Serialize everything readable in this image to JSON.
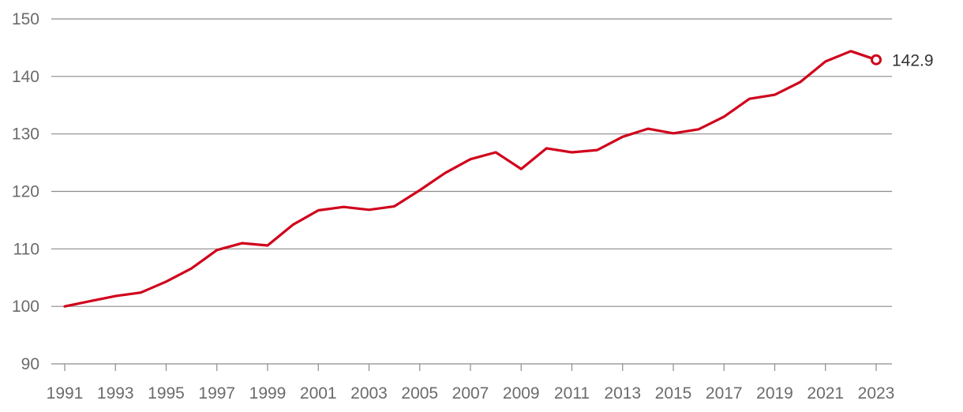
{
  "chart_data": {
    "type": "line",
    "title": "",
    "xlabel": "",
    "ylabel": "",
    "xlim": [
      1991,
      2023
    ],
    "ylim": [
      90,
      150
    ],
    "yticks": [
      90,
      100,
      110,
      120,
      130,
      140,
      150
    ],
    "xticks": [
      1991,
      1993,
      1995,
      1997,
      1999,
      2001,
      2003,
      2005,
      2007,
      2009,
      2011,
      2013,
      2015,
      2017,
      2019,
      2021,
      2023
    ],
    "grid": true,
    "line_color": "#d0021b",
    "series": [
      {
        "x": [
          1991,
          1992,
          1993,
          1994,
          1995,
          1996,
          1997,
          1998,
          1999,
          2000,
          2001,
          2002,
          2003,
          2004,
          2005,
          2006,
          2007,
          2008,
          2009,
          2010,
          2011,
          2012,
          2013,
          2014,
          2015,
          2016,
          2017,
          2018,
          2019,
          2020,
          2021,
          2022,
          2023
        ],
        "values": [
          100.0,
          100.9,
          101.8,
          102.4,
          104.3,
          106.6,
          109.8,
          111.0,
          110.6,
          114.2,
          116.7,
          117.3,
          116.8,
          117.4,
          120.2,
          123.2,
          125.6,
          126.8,
          123.9,
          127.5,
          126.8,
          127.2,
          129.5,
          130.9,
          130.1,
          130.8,
          133.0,
          136.1,
          136.8,
          139.0,
          142.6,
          144.4,
          142.9
        ]
      }
    ],
    "end_label": "142.9"
  }
}
